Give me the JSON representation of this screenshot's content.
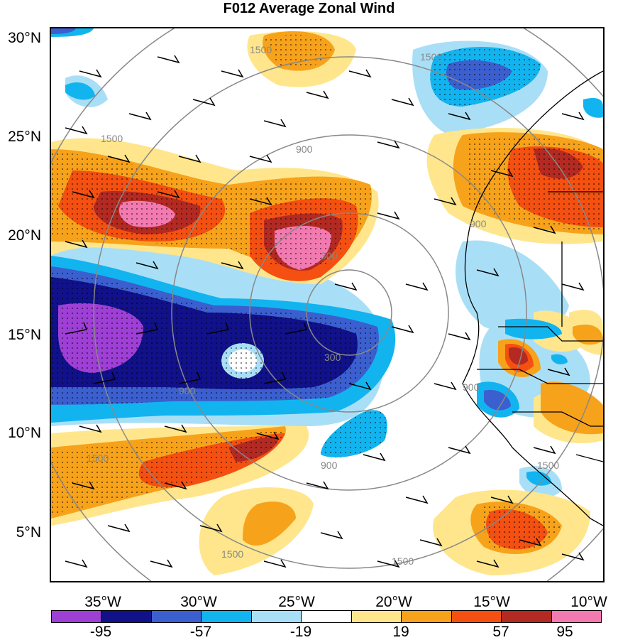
{
  "title": "F012 Average Zonal Wind",
  "lat_labels": [
    "30°N",
    "25°N",
    "20°N",
    "15°N",
    "10°N",
    "5°N"
  ],
  "lon_labels": [
    "35°W",
    "30°W",
    "25°W",
    "20°W",
    "15°W",
    "10°W"
  ],
  "range_ring_labels": [
    "300",
    "900",
    "1500"
  ],
  "colorbar": {
    "colors": [
      "#9e3fd5",
      "#11118a",
      "#3b5fcf",
      "#12b4ef",
      "#a9dff6",
      "#ffffff",
      "#ffe68c",
      "#f7a21b",
      "#f35011",
      "#b32a22",
      "#f37ab0"
    ],
    "labels": [
      "-95",
      "-57",
      "-19",
      "19",
      "57",
      "95"
    ]
  }
}
